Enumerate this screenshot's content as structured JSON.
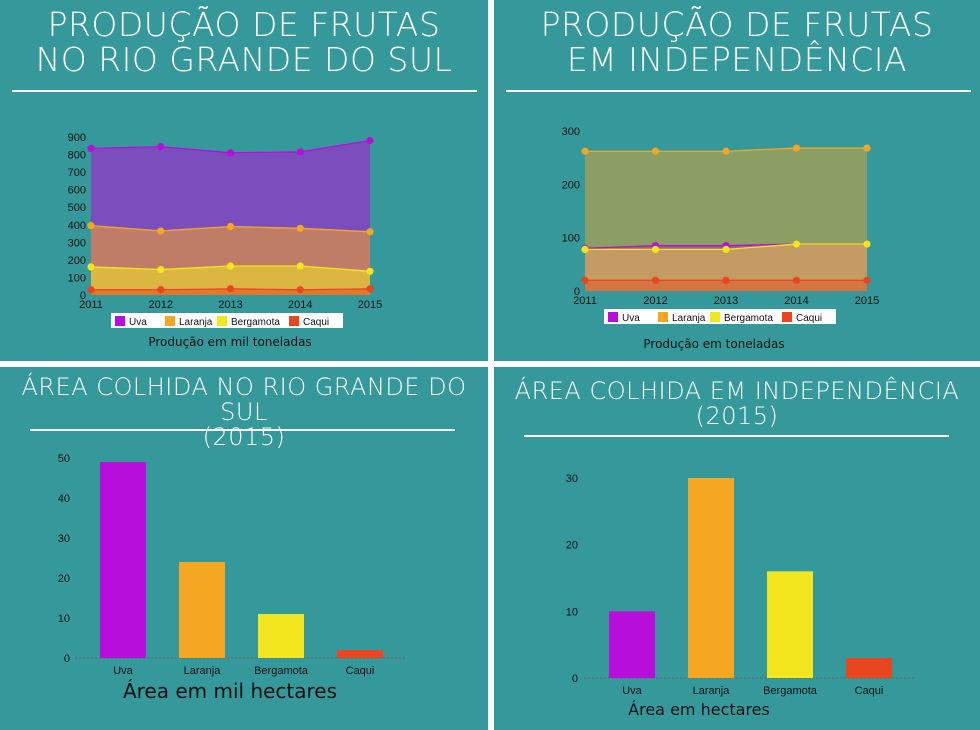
{
  "panels": {
    "p1": {
      "title_line1": "PRODUÇÃO DE FRUTAS",
      "title_line2": "NO RIO GRANDE DO SUL"
    },
    "p2": {
      "title_line1": "PRODUÇÃO DE FRUTAS",
      "title_line2": "EM INDEPENDÊNCIA"
    },
    "p3": {
      "title_line1": "ÁREA COLHIDA NO RIO GRANDE DO SUL",
      "title_line2": "(2015)"
    },
    "p4": {
      "title_line1": "ÁREA COLHIDA EM INDEPENDÊNCIA",
      "title_line2": "(2015)"
    }
  },
  "colors": {
    "panel_bg": "#35999b",
    "uva": "#b70fd9",
    "laranja": "#f5a623",
    "bergamota": "#f2e61f",
    "caqui": "#e8461e"
  },
  "chart_data": [
    {
      "type": "area",
      "x": [
        2011,
        2012,
        2013,
        2014,
        2015
      ],
      "yticks": [
        0,
        100,
        200,
        300,
        400,
        500,
        600,
        700,
        800,
        900
      ],
      "ylim": [
        0,
        900
      ],
      "series": [
        {
          "name": "Uva",
          "values": [
            835,
            845,
            810,
            815,
            880
          ]
        },
        {
          "name": "Laranja",
          "values": [
            395,
            365,
            390,
            380,
            360
          ]
        },
        {
          "name": "Bergamota",
          "values": [
            160,
            145,
            165,
            165,
            135
          ]
        },
        {
          "name": "Caqui",
          "values": [
            30,
            30,
            35,
            30,
            35
          ]
        }
      ],
      "xlabel": "Produção em mil toneladas",
      "legend": "bottom"
    },
    {
      "type": "area",
      "x": [
        2011,
        2012,
        2013,
        2014,
        2015
      ],
      "yticks": [
        0,
        100,
        200,
        300
      ],
      "ylim": [
        0,
        300
      ],
      "series": [
        {
          "name": "Uva",
          "values": [
            80,
            85,
            85,
            88,
            88
          ]
        },
        {
          "name": "Laranja",
          "values": [
            262,
            262,
            262,
            268,
            268
          ]
        },
        {
          "name": "Bergamota",
          "values": [
            78,
            78,
            78,
            88,
            88
          ]
        },
        {
          "name": "Caqui",
          "values": [
            20,
            20,
            20,
            20,
            20
          ]
        }
      ],
      "xlabel": "Produção em toneladas",
      "legend": "bottom"
    },
    {
      "type": "bar",
      "categories": [
        "Uva",
        "Laranja",
        "Bergamota",
        "Caqui"
      ],
      "values": [
        49,
        24,
        11,
        2
      ],
      "yticks": [
        0,
        10,
        20,
        30,
        40,
        50
      ],
      "ylim": [
        0,
        50
      ],
      "xlabel": "Área em mil hectares"
    },
    {
      "type": "bar",
      "categories": [
        "Uva",
        "Laranja",
        "Bergamota",
        "Caqui"
      ],
      "values": [
        10,
        30,
        16,
        3
      ],
      "yticks": [
        0,
        10,
        20,
        30
      ],
      "ylim": [
        0,
        30
      ],
      "xlabel": "Área em hectares"
    }
  ]
}
